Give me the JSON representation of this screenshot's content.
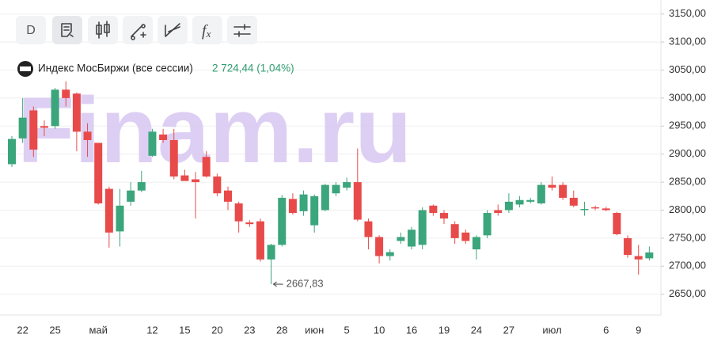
{
  "chart_data": {
    "type": "candlestick",
    "name": "Индекс МосБиржи (все сессии)",
    "last_label": "2 724,44 (1,04%)",
    "watermark": "Finam.ru",
    "toolbar": {
      "d": "D",
      "f": "f",
      "x": "x"
    },
    "annotation": {
      "low_label": "2667,83",
      "index": 24
    },
    "up_color": "#3ba57c",
    "down_color": "#e84a4a",
    "categories": [
      null,
      "22",
      null,
      null,
      "25",
      null,
      null,
      null,
      "май",
      null,
      null,
      null,
      null,
      "12",
      null,
      null,
      "15",
      null,
      null,
      "20",
      null,
      null,
      "23",
      null,
      null,
      "28",
      null,
      null,
      "июн",
      null,
      null,
      "5",
      null,
      null,
      "10",
      null,
      null,
      "16",
      null,
      null,
      "19",
      null,
      null,
      "24",
      null,
      null,
      "27",
      null,
      null,
      null,
      "июл",
      null,
      null,
      null,
      null,
      "6",
      null,
      null,
      "9",
      null
    ],
    "open": [
      2882,
      2928,
      2978,
      2950,
      2950,
      3015,
      3008,
      2940,
      2920,
      2838,
      2762,
      2815,
      2835,
      2897,
      2935,
      2925,
      2862,
      2855,
      2895,
      2860,
      2835,
      2812,
      2778,
      2780,
      2712,
      2738,
      2820,
      2798,
      2773,
      2800,
      2830,
      2840,
      2850,
      2780,
      2752,
      2718,
      2745,
      2735,
      2738,
      2808,
      2795,
      2775,
      2760,
      2730,
      2755,
      2800,
      2800,
      2810,
      2815,
      2812,
      2845,
      2845,
      2822,
      2800,
      2805,
      2803,
      2795,
      2750,
      2718,
      2714
    ],
    "high": [
      2932,
      3000,
      2985,
      2960,
      3018,
      3030,
      3010,
      2955,
      2920,
      2842,
      2838,
      2850,
      2870,
      2945,
      2945,
      2945,
      2872,
      2868,
      2905,
      2865,
      2842,
      2815,
      2782,
      2785,
      2740,
      2827,
      2830,
      2835,
      2828,
      2847,
      2850,
      2858,
      2910,
      2785,
      2755,
      2730,
      2760,
      2770,
      2805,
      2810,
      2800,
      2780,
      2765,
      2755,
      2800,
      2810,
      2830,
      2825,
      2822,
      2850,
      2860,
      2850,
      2835,
      2815,
      2808,
      2806,
      2797,
      2755,
      2738,
      2735
    ],
    "low": [
      2877,
      2920,
      2895,
      2932,
      2945,
      2985,
      2905,
      2895,
      2810,
      2733,
      2735,
      2808,
      2832,
      2895,
      2920,
      2855,
      2855,
      2785,
      2858,
      2825,
      2800,
      2760,
      2770,
      2708,
      2667.83,
      2735,
      2792,
      2790,
      2760,
      2798,
      2825,
      2835,
      2780,
      2730,
      2705,
      2710,
      2740,
      2730,
      2730,
      2790,
      2775,
      2740,
      2740,
      2712,
      2750,
      2790,
      2795,
      2805,
      2812,
      2810,
      2835,
      2818,
      2805,
      2790,
      2800,
      2798,
      2755,
      2715,
      2685,
      2710
    ],
    "close": [
      2927,
      2965,
      2908,
      2947,
      3015,
      3000,
      2940,
      2925,
      2812,
      2760,
      2808,
      2835,
      2850,
      2940,
      2925,
      2860,
      2852,
      2850,
      2860,
      2830,
      2815,
      2780,
      2775,
      2712,
      2738,
      2822,
      2795,
      2828,
      2825,
      2845,
      2845,
      2850,
      2783,
      2752,
      2718,
      2725,
      2752,
      2765,
      2800,
      2795,
      2785,
      2750,
      2745,
      2752,
      2795,
      2795,
      2815,
      2818,
      2818,
      2845,
      2840,
      2822,
      2808,
      2802,
      2803,
      2800,
      2757,
      2720,
      2712,
      2724.44
    ],
    "ylim": [
      2610,
      3175
    ],
    "yticks": [
      {
        "value": 2650,
        "label": "2650,00"
      },
      {
        "value": 2700,
        "label": "2700,00"
      },
      {
        "value": 2750,
        "label": "2750,00"
      },
      {
        "value": 2800,
        "label": "2800,00"
      },
      {
        "value": 2850,
        "label": "2850,00"
      },
      {
        "value": 2900,
        "label": "2900,00"
      },
      {
        "value": 2950,
        "label": "2950,00"
      },
      {
        "value": 3000,
        "label": "3000,00"
      },
      {
        "value": 3050,
        "label": "3050,00"
      },
      {
        "value": 3100,
        "label": "3100,00"
      },
      {
        "value": 3150,
        "label": "3150,00"
      }
    ],
    "grid": true
  }
}
